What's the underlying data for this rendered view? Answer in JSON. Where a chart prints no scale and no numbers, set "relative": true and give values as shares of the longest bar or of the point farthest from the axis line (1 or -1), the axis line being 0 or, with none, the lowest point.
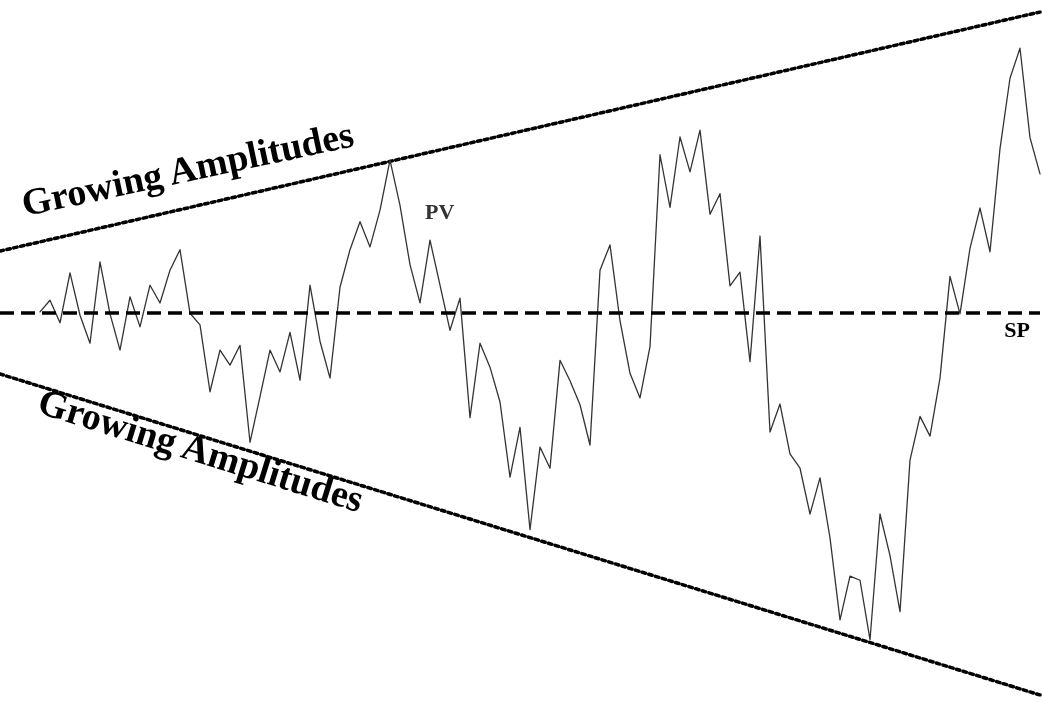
{
  "chart_data": {
    "type": "line",
    "relative": true,
    "tick_labels": false,
    "legend": false,
    "marker": "none",
    "categories": [
      null,
      null,
      null,
      null,
      null,
      null,
      null,
      null,
      null,
      null,
      null,
      null,
      null,
      null,
      null,
      null,
      null,
      null,
      null,
      null,
      null,
      null,
      null,
      null,
      null,
      null,
      null,
      null,
      null,
      null,
      null,
      null,
      null,
      null,
      null,
      null,
      null,
      null,
      null,
      null,
      null,
      null,
      null,
      null,
      null,
      null,
      null,
      null,
      null,
      null,
      null,
      null,
      null,
      null,
      null,
      null,
      null,
      null,
      null,
      null,
      null,
      null,
      null,
      null,
      null,
      null,
      null,
      null,
      null,
      null,
      null,
      null,
      null,
      null,
      null,
      null,
      null,
      null,
      null,
      null,
      null,
      null,
      null,
      null,
      null,
      null,
      null,
      null,
      null,
      null,
      null,
      null,
      null,
      null,
      null,
      null,
      null,
      null,
      null,
      null,
      null,
      null,
      null,
      null,
      null
    ],
    "annotations": [
      "Growing Amplitudes",
      "Growing Amplitudes"
    ],
    "ref_lines": [
      {
        "axis": "y",
        "value": 0.559,
        "label": "SP",
        "color": "#000000",
        "line_style": "dashed"
      }
    ],
    "series": [
      {
        "name": "PV",
        "color": "#333333",
        "line_style": "solid",
        "values": [
          null,
          null,
          null,
          null,
          0.561,
          0.578,
          0.545,
          0.618,
          0.556,
          0.515,
          0.634,
          0.558,
          0.505,
          0.583,
          0.539,
          0.6,
          0.574,
          0.622,
          0.652,
          0.559,
          0.542,
          0.444,
          0.505,
          0.483,
          0.512,
          0.37,
          0.437,
          0.505,
          0.473,
          0.531,
          0.461,
          0.6,
          0.518,
          0.464,
          0.597,
          0.652,
          0.693,
          0.656,
          0.71,
          0.783,
          0.717,
          0.63,
          0.574,
          0.666,
          0.6,
          0.534,
          0.581,
          0.406,
          0.515,
          0.48,
          0.429,
          0.319,
          0.392,
          0.242,
          0.363,
          0.332,
          0.49,
          0.46,
          0.425,
          0.366,
          0.622,
          0.659,
          0.548,
          0.471,
          0.435,
          0.51,
          0.791,
          0.714,
          0.817,
          0.766,
          0.827,
          0.704,
          0.734,
          0.599,
          0.619,
          0.488,
          0.672,
          0.385,
          0.426,
          0.353,
          0.332,
          0.265,
          0.318,
          0.23,
          0.11,
          0.174,
          0.168,
          0.081,
          0.265,
          0.204,
          0.122,
          0.344,
          0.408,
          0.379,
          0.464,
          0.613,
          0.558,
          0.654,
          0.713,
          0.649,
          0.8,
          0.903,
          0.947,
          0.816,
          0.763
        ]
      },
      {
        "color": "#000000",
        "line_style": "dotted",
        "values": [
          0.65,
          null,
          null,
          null,
          null,
          null,
          null,
          null,
          null,
          null,
          null,
          null,
          null,
          null,
          null,
          null,
          null,
          null,
          null,
          null,
          null,
          null,
          null,
          null,
          null,
          null,
          null,
          null,
          null,
          null,
          null,
          null,
          null,
          null,
          null,
          null,
          null,
          null,
          null,
          null,
          null,
          null,
          null,
          null,
          null,
          null,
          null,
          null,
          null,
          null,
          null,
          null,
          null,
          null,
          null,
          null,
          null,
          null,
          null,
          null,
          null,
          null,
          null,
          null,
          null,
          null,
          null,
          null,
          null,
          null,
          null,
          null,
          null,
          null,
          null,
          null,
          null,
          null,
          null,
          null,
          null,
          null,
          null,
          null,
          null,
          null,
          null,
          null,
          null,
          null,
          null,
          null,
          null,
          null,
          null,
          null,
          null,
          null,
          null,
          null,
          null,
          null,
          null,
          null,
          1.0
        ]
      },
      {
        "color": "#000000",
        "line_style": "dotted",
        "values": [
          0.47,
          null,
          null,
          null,
          null,
          null,
          null,
          null,
          null,
          null,
          null,
          null,
          null,
          null,
          null,
          null,
          null,
          null,
          null,
          null,
          null,
          null,
          null,
          null,
          null,
          null,
          null,
          null,
          null,
          null,
          null,
          null,
          null,
          null,
          null,
          null,
          null,
          null,
          null,
          null,
          null,
          null,
          null,
          null,
          null,
          null,
          null,
          null,
          null,
          null,
          null,
          null,
          null,
          null,
          null,
          null,
          null,
          null,
          null,
          null,
          null,
          null,
          null,
          null,
          null,
          null,
          null,
          null,
          null,
          null,
          null,
          null,
          null,
          null,
          null,
          null,
          null,
          null,
          null,
          null,
          null,
          null,
          null,
          null,
          null,
          null,
          null,
          null,
          null,
          null,
          null,
          null,
          null,
          null,
          null,
          null,
          null,
          null,
          null,
          null,
          null,
          null,
          null,
          null,
          0.0
        ]
      }
    ]
  }
}
